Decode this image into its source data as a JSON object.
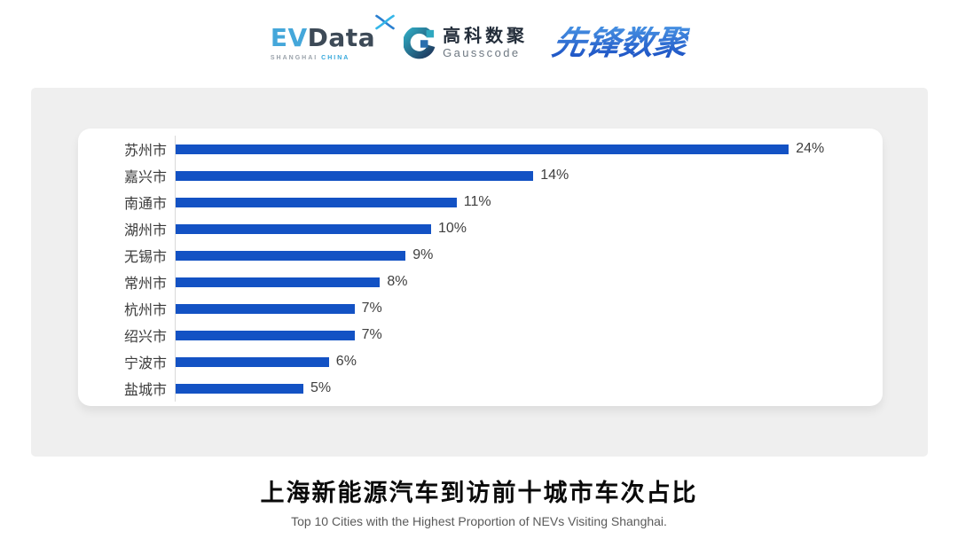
{
  "header": {
    "evdata": {
      "ev": "EV",
      "data": "Data",
      "sub_left": "SHANGHAI",
      "sub_right": "CHINA"
    },
    "gausscode": {
      "cn": "高科数聚",
      "en": "Gausscode"
    },
    "xianfeng": {
      "text": "先锋数聚"
    }
  },
  "chart_data": {
    "type": "bar",
    "orientation": "horizontal",
    "categories": [
      "苏州市",
      "嘉兴市",
      "南通市",
      "湖州市",
      "无锡市",
      "常州市",
      "杭州市",
      "绍兴市",
      "宁波市",
      "盐城市"
    ],
    "values": [
      24,
      14,
      11,
      10,
      9,
      8,
      7,
      7,
      6,
      5
    ],
    "value_labels": [
      "24%",
      "14%",
      "11%",
      "10%",
      "9%",
      "8%",
      "7%",
      "7%",
      "6%",
      "5%"
    ],
    "title": "上海新能源汽车到访前十城市车次占比",
    "subtitle": "Top 10 Cities with the Highest Proportion of  NEVs Visiting Shanghai.",
    "xlabel": "",
    "ylabel": "",
    "xlim": [
      0,
      24.5
    ],
    "grid": false,
    "legend": false,
    "bar_color": "#1352c4",
    "axis_line_color": "#d9d9d9"
  }
}
